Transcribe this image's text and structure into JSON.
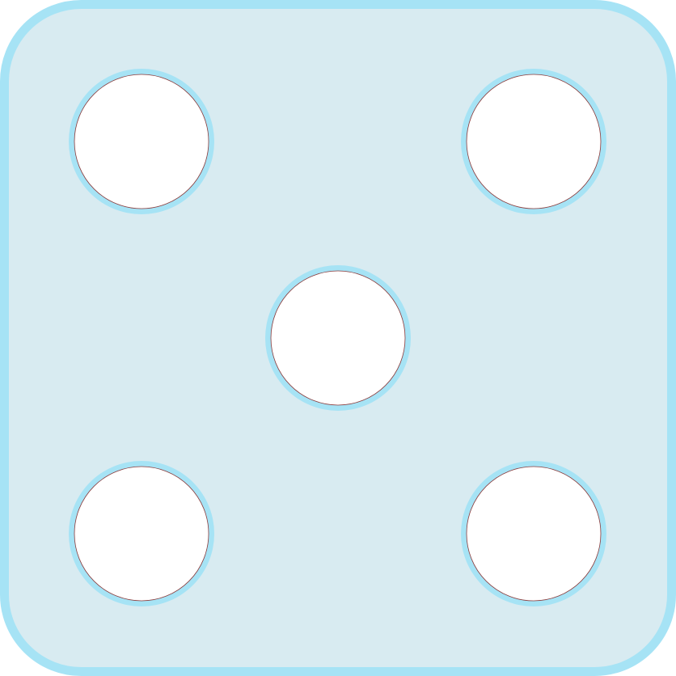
{
  "die": {
    "face_value": 5,
    "icon": "dice-five-icon",
    "colors": {
      "face_fill": "#d8ebf1",
      "border": "#a6e3f5",
      "pip_fill": "#ffffff",
      "pip_ring": "#a6e3f5",
      "pip_edge": "#8b3a3a"
    }
  }
}
